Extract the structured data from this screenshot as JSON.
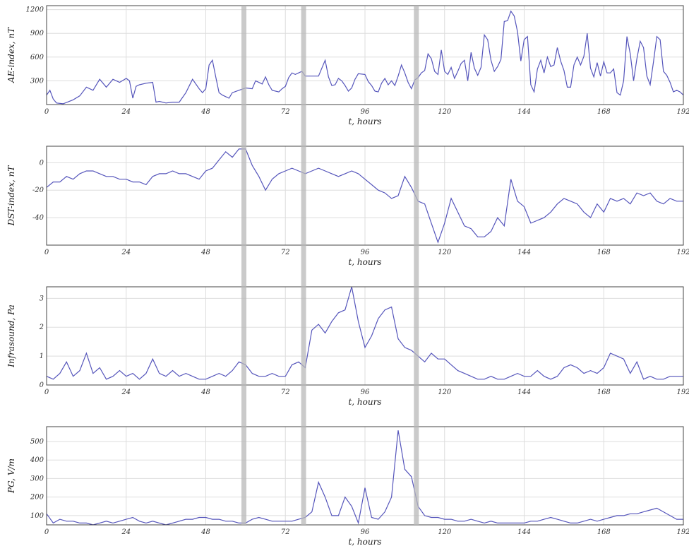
{
  "chart_data": [
    {
      "type": "line",
      "ylabel": "AE-index, nT",
      "xlabel": "t, hours",
      "xlim": [
        0,
        192
      ],
      "ylim": [
        0,
        1250
      ],
      "xticks": [
        "0",
        "24",
        "48",
        "72",
        "96",
        "120",
        "144",
        "168",
        "192"
      ],
      "yticks": [
        300,
        600,
        900,
        1200
      ],
      "series": [
        {
          "color": "#5555bb",
          "x": [
            0,
            1,
            2,
            3,
            5,
            8,
            10,
            12,
            14,
            16,
            18,
            20,
            22,
            24,
            25,
            26,
            27,
            28,
            30,
            32,
            33,
            34,
            36,
            38,
            40,
            42,
            44,
            46,
            47,
            48,
            49,
            50,
            51,
            52,
            53,
            54,
            55,
            56,
            58,
            60,
            62,
            63,
            64,
            65,
            66,
            67,
            68,
            70,
            71,
            72,
            73,
            74,
            75,
            76,
            77,
            78,
            80,
            82,
            84,
            85,
            86,
            87,
            88,
            89,
            90,
            91,
            92,
            93,
            94,
            96,
            97,
            98,
            99,
            100,
            101,
            102,
            103,
            104,
            105,
            106,
            107,
            108,
            109,
            110,
            111,
            112,
            113,
            114,
            115,
            116,
            117,
            118,
            119,
            120,
            121,
            122,
            123,
            124,
            125,
            126,
            127,
            128,
            129,
            130,
            131,
            132,
            133,
            134,
            135,
            136,
            137,
            138,
            139,
            140,
            141,
            142,
            143,
            144,
            145,
            146,
            147,
            148,
            149,
            150,
            151,
            152,
            153,
            154,
            155,
            156,
            157,
            158,
            159,
            160,
            161,
            162,
            163,
            164,
            165,
            166,
            167,
            168,
            169,
            170,
            171,
            172,
            173,
            174,
            175,
            176,
            177,
            178,
            179,
            180,
            181,
            182,
            183,
            184,
            185,
            186,
            187,
            188,
            189,
            190,
            191,
            192
          ],
          "y": [
            120,
            180,
            70,
            20,
            10,
            60,
            110,
            220,
            180,
            320,
            220,
            320,
            280,
            330,
            300,
            80,
            230,
            250,
            270,
            280,
            30,
            40,
            20,
            30,
            30,
            150,
            320,
            200,
            150,
            200,
            500,
            560,
            350,
            150,
            120,
            100,
            80,
            150,
            180,
            210,
            200,
            300,
            280,
            260,
            350,
            250,
            180,
            160,
            200,
            230,
            340,
            400,
            380,
            400,
            420,
            360,
            360,
            360,
            560,
            350,
            240,
            250,
            330,
            300,
            240,
            170,
            210,
            320,
            390,
            380,
            290,
            240,
            170,
            160,
            270,
            330,
            250,
            300,
            240,
            360,
            500,
            400,
            280,
            200,
            310,
            340,
            400,
            430,
            640,
            580,
            420,
            380,
            690,
            420,
            380,
            470,
            330,
            420,
            520,
            560,
            300,
            660,
            460,
            370,
            470,
            880,
            820,
            560,
            420,
            480,
            570,
            1050,
            1060,
            1180,
            1120,
            920,
            550,
            820,
            860,
            250,
            160,
            450,
            560,
            400,
            600,
            480,
            500,
            720,
            550,
            430,
            220,
            220,
            500,
            600,
            500,
            610,
            900,
            460,
            350,
            530,
            360,
            540,
            400,
            400,
            450,
            150,
            120,
            300,
            860,
            640,
            300,
            580,
            800,
            720,
            360,
            250,
            540,
            860,
            820,
            420,
            370,
            280,
            160,
            180,
            160,
            120
          ]
        }
      ]
    },
    {
      "type": "line",
      "ylabel": "DST-index, nT",
      "xlabel": "t, hours",
      "xlim": [
        0,
        192
      ],
      "ylim": [
        -60,
        12
      ],
      "xticks": [
        "0",
        "24",
        "48",
        "72",
        "96",
        "120",
        "144",
        "168",
        "192"
      ],
      "yticks": [
        -40,
        -20,
        0
      ],
      "series": [
        {
          "color": "#5555bb",
          "x": [
            0,
            2,
            4,
            6,
            8,
            10,
            12,
            14,
            16,
            18,
            20,
            22,
            24,
            26,
            28,
            30,
            32,
            34,
            36,
            38,
            40,
            42,
            44,
            46,
            48,
            50,
            52,
            54,
            56,
            58,
            60,
            62,
            64,
            66,
            68,
            70,
            72,
            74,
            76,
            78,
            80,
            82,
            84,
            86,
            88,
            90,
            92,
            94,
            96,
            98,
            100,
            102,
            104,
            106,
            108,
            110,
            112,
            114,
            116,
            118,
            120,
            122,
            124,
            126,
            128,
            130,
            132,
            134,
            136,
            138,
            140,
            142,
            144,
            146,
            148,
            150,
            152,
            154,
            156,
            158,
            160,
            162,
            164,
            166,
            168,
            170,
            172,
            174,
            176,
            178,
            180,
            182,
            184,
            186,
            188,
            190,
            192
          ],
          "y": [
            -18,
            -14,
            -14,
            -10,
            -12,
            -8,
            -6,
            -6,
            -8,
            -10,
            -10,
            -12,
            -12,
            -14,
            -14,
            -16,
            -10,
            -8,
            -8,
            -6,
            -8,
            -8,
            -10,
            -12,
            -6,
            -4,
            2,
            8,
            4,
            10,
            10,
            -2,
            -10,
            -20,
            -12,
            -8,
            -6,
            -4,
            -6,
            -8,
            -6,
            -4,
            -6,
            -8,
            -10,
            -8,
            -6,
            -8,
            -12,
            -16,
            -20,
            -22,
            -26,
            -24,
            -10,
            -18,
            -28,
            -30,
            -44,
            -58,
            -44,
            -26,
            -36,
            -46,
            -48,
            -54,
            -54,
            -50,
            -40,
            -46,
            -12,
            -28,
            -32,
            -44,
            -42,
            -40,
            -36,
            -30,
            -26,
            -28,
            -30,
            -36,
            -40,
            -30,
            -36,
            -26,
            -28,
            -26,
            -30,
            -22,
            -24,
            -22,
            -28,
            -30,
            -26,
            -28,
            -28
          ]
        }
      ]
    },
    {
      "type": "line",
      "ylabel": "Infrasound, Pa",
      "xlabel": "t, hours",
      "xlim": [
        0,
        192
      ],
      "ylim": [
        0,
        3.4
      ],
      "xticks": [
        "0",
        "24",
        "48",
        "72",
        "96",
        "120",
        "144",
        "168",
        "192"
      ],
      "yticks": [
        0,
        1,
        2,
        3
      ],
      "series": [
        {
          "color": "#5555bb",
          "x": [
            0,
            2,
            4,
            6,
            8,
            10,
            12,
            14,
            16,
            18,
            20,
            22,
            24,
            26,
            28,
            30,
            32,
            34,
            36,
            38,
            40,
            42,
            44,
            46,
            48,
            50,
            52,
            54,
            56,
            58,
            60,
            62,
            64,
            66,
            68,
            70,
            72,
            74,
            76,
            78,
            80,
            82,
            84,
            86,
            88,
            90,
            92,
            94,
            96,
            98,
            100,
            102,
            104,
            106,
            108,
            110,
            112,
            114,
            116,
            118,
            120,
            122,
            124,
            126,
            128,
            130,
            132,
            134,
            136,
            138,
            140,
            142,
            144,
            146,
            148,
            150,
            152,
            154,
            156,
            158,
            160,
            162,
            164,
            166,
            168,
            170,
            172,
            174,
            176,
            178,
            180,
            182,
            184,
            186,
            188,
            190,
            192
          ],
          "y": [
            0.3,
            0.2,
            0.4,
            0.8,
            0.3,
            0.5,
            1.1,
            0.4,
            0.6,
            0.2,
            0.3,
            0.5,
            0.3,
            0.4,
            0.2,
            0.4,
            0.9,
            0.4,
            0.3,
            0.5,
            0.3,
            0.4,
            0.3,
            0.2,
            0.2,
            0.3,
            0.4,
            0.3,
            0.5,
            0.8,
            0.7,
            0.4,
            0.3,
            0.3,
            0.4,
            0.3,
            0.3,
            0.7,
            0.8,
            0.6,
            1.9,
            2.1,
            1.8,
            2.2,
            2.5,
            2.6,
            3.4,
            2.2,
            1.3,
            1.7,
            2.3,
            2.6,
            2.7,
            1.6,
            1.3,
            1.2,
            1.0,
            0.8,
            1.1,
            0.9,
            0.9,
            0.7,
            0.5,
            0.4,
            0.3,
            0.2,
            0.2,
            0.3,
            0.2,
            0.2,
            0.3,
            0.4,
            0.3,
            0.3,
            0.5,
            0.3,
            0.2,
            0.3,
            0.6,
            0.7,
            0.6,
            0.4,
            0.5,
            0.4,
            0.6,
            1.1,
            1.0,
            0.9,
            0.4,
            0.8,
            0.2,
            0.3,
            0.2,
            0.2,
            0.3,
            0.3,
            0.3
          ]
        }
      ]
    },
    {
      "type": "line",
      "ylabel": "PG, V/m",
      "xlabel": "t, hours",
      "xlim": [
        0,
        192
      ],
      "ylim": [
        50,
        580
      ],
      "xticks": [
        "0",
        "24",
        "48",
        "72",
        "96",
        "120",
        "144",
        "168",
        "192"
      ],
      "yticks": [
        100,
        200,
        300,
        400,
        500
      ],
      "series": [
        {
          "color": "#5555bb",
          "x": [
            0,
            2,
            4,
            6,
            8,
            10,
            12,
            14,
            16,
            18,
            20,
            22,
            24,
            26,
            28,
            30,
            32,
            34,
            36,
            38,
            40,
            42,
            44,
            46,
            48,
            50,
            52,
            54,
            56,
            58,
            60,
            62,
            64,
            66,
            68,
            70,
            72,
            74,
            76,
            78,
            80,
            82,
            84,
            86,
            88,
            90,
            92,
            94,
            96,
            98,
            100,
            102,
            104,
            106,
            108,
            110,
            112,
            114,
            116,
            118,
            120,
            122,
            124,
            126,
            128,
            130,
            132,
            134,
            136,
            138,
            140,
            142,
            144,
            146,
            148,
            150,
            152,
            154,
            156,
            158,
            160,
            162,
            164,
            166,
            168,
            170,
            172,
            174,
            176,
            178,
            180,
            182,
            184,
            186,
            188,
            190,
            192
          ],
          "y": [
            110,
            60,
            80,
            70,
            70,
            60,
            60,
            50,
            60,
            70,
            60,
            70,
            80,
            90,
            70,
            60,
            70,
            60,
            50,
            60,
            70,
            80,
            80,
            90,
            90,
            80,
            80,
            70,
            70,
            60,
            60,
            80,
            90,
            80,
            70,
            70,
            70,
            70,
            80,
            90,
            120,
            280,
            200,
            100,
            100,
            200,
            150,
            60,
            250,
            90,
            80,
            120,
            200,
            560,
            350,
            310,
            150,
            100,
            90,
            90,
            80,
            80,
            70,
            70,
            80,
            70,
            60,
            70,
            60,
            60,
            60,
            60,
            60,
            70,
            70,
            80,
            90,
            80,
            70,
            60,
            60,
            70,
            80,
            70,
            80,
            90,
            100,
            100,
            110,
            110,
            120,
            130,
            140,
            120,
            100,
            80,
            80
          ]
        }
      ]
    }
  ],
  "highlight_bands_hours": [
    59.5,
    77.5,
    111.5
  ]
}
